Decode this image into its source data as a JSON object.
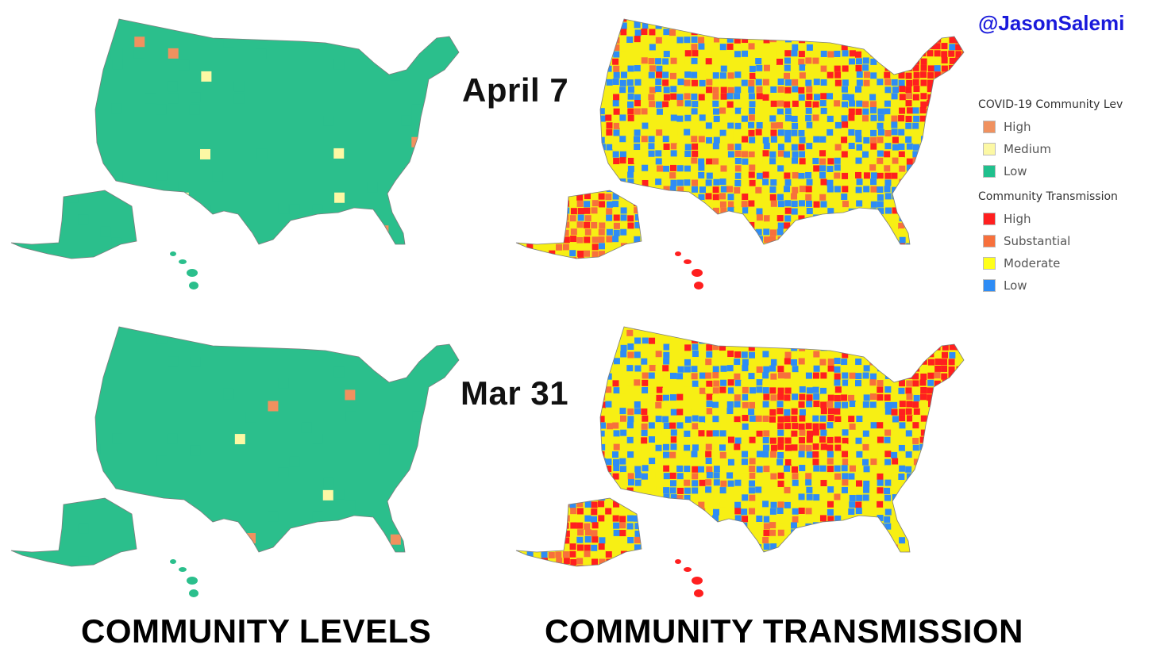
{
  "handle": "@JasonSalemi",
  "handle_color": "#1a1adb",
  "dates": {
    "top": "April 7",
    "bottom": "Mar 31"
  },
  "bottom_labels": {
    "left": "COMMUNITY LEVELS",
    "right": "COMMUNITY TRANSMISSION"
  },
  "legend": {
    "levels": {
      "heading": "COVID-19 Community Lev",
      "items": [
        {
          "label": "High",
          "color": "#f0915f"
        },
        {
          "label": "Medium",
          "color": "#fcf8a4"
        },
        {
          "label": "Low",
          "color": "#20c08d"
        }
      ]
    },
    "transmission": {
      "heading": "Community Transmission",
      "items": [
        {
          "label": "High",
          "color": "#ff1f1f"
        },
        {
          "label": "Substantial",
          "color": "#f7703c"
        },
        {
          "label": "Moderate",
          "color": "#ffff1a"
        },
        {
          "label": "Low",
          "color": "#2e8cf5"
        }
      ]
    }
  },
  "map_colors": {
    "levels_base": "#2bbf8c",
    "transmission_base": "#f7ef14",
    "border": "#7d7d7d"
  }
}
